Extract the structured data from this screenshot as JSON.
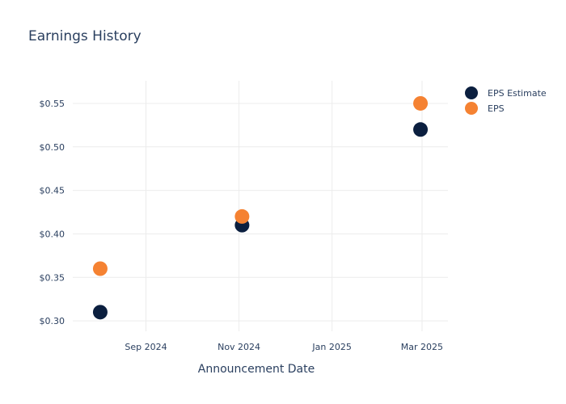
{
  "chart_data": {
    "type": "scatter",
    "title": "Earnings History",
    "xlabel": "Announcement Date",
    "ylabel": "",
    "x_ticks": [
      {
        "date": "2024-09-01",
        "label": "Sep 2024"
      },
      {
        "date": "2024-11-01",
        "label": "Nov 2024"
      },
      {
        "date": "2025-01-01",
        "label": "Jan 2025"
      },
      {
        "date": "2025-03-01",
        "label": "Mar 2025"
      }
    ],
    "xlim": [
      "2024-07-15",
      "2025-03-18"
    ],
    "y_ticks": [
      0.3,
      0.35,
      0.4,
      0.45,
      0.5,
      0.55
    ],
    "y_tick_labels": [
      "$0.30",
      "$0.35",
      "$0.40",
      "$0.45",
      "$0.50",
      "$0.55"
    ],
    "ylim": [
      0.288,
      0.576
    ],
    "grid": true,
    "legend_position": "top-right",
    "series": [
      {
        "name": "EPS Estimate",
        "color": "#0b1f3f",
        "points": [
          {
            "x": "2024-08-02",
            "y": 0.31
          },
          {
            "x": "2024-11-03",
            "y": 0.41
          },
          {
            "x": "2025-02-28",
            "y": 0.52
          }
        ]
      },
      {
        "name": "EPS",
        "color": "#f58232",
        "points": [
          {
            "x": "2024-08-02",
            "y": 0.36
          },
          {
            "x": "2024-11-03",
            "y": 0.42
          },
          {
            "x": "2025-02-28",
            "y": 0.55
          }
        ]
      }
    ]
  }
}
